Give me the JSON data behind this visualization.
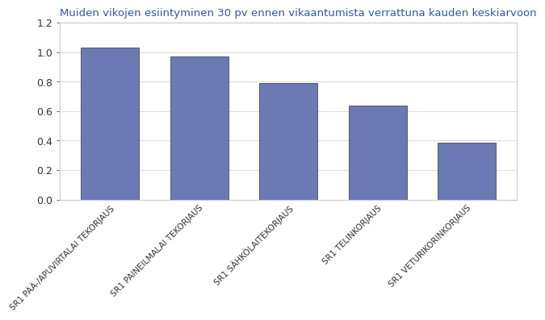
{
  "title": "Muiden vikojen esiintyminen 30 pv ennen vikaantumista verrattuna kauden keskiarvoon",
  "categories": [
    "SR1 PÄÄ-/APUVIRTALAI TEKORJAUS",
    "SR1 PAINEILMALAI TEKORJAUS",
    "SR1 SÄHKÖLAITE KORJAUS",
    "SR1 TELINKORJAUS",
    "SR1 VETURIKORIN KORJAUS"
  ],
  "values": [
    1.03,
    0.97,
    0.79,
    0.635,
    0.385
  ],
  "bar_color": "#6b7ab5",
  "background_color": "#ffffff",
  "plot_bg_color": "#ffffff",
  "ylim": [
    0,
    1.2
  ],
  "yticks": [
    0.0,
    0.2,
    0.4,
    0.6,
    0.8,
    1.0,
    1.2
  ],
  "title_color": "#3355aa",
  "title_fontsize": 9.5,
  "tick_colors": [
    "#cc2200",
    "#0000cc",
    "#cc2200",
    "#0000cc",
    "#cc2200"
  ],
  "label_fontsize": 7.5
}
